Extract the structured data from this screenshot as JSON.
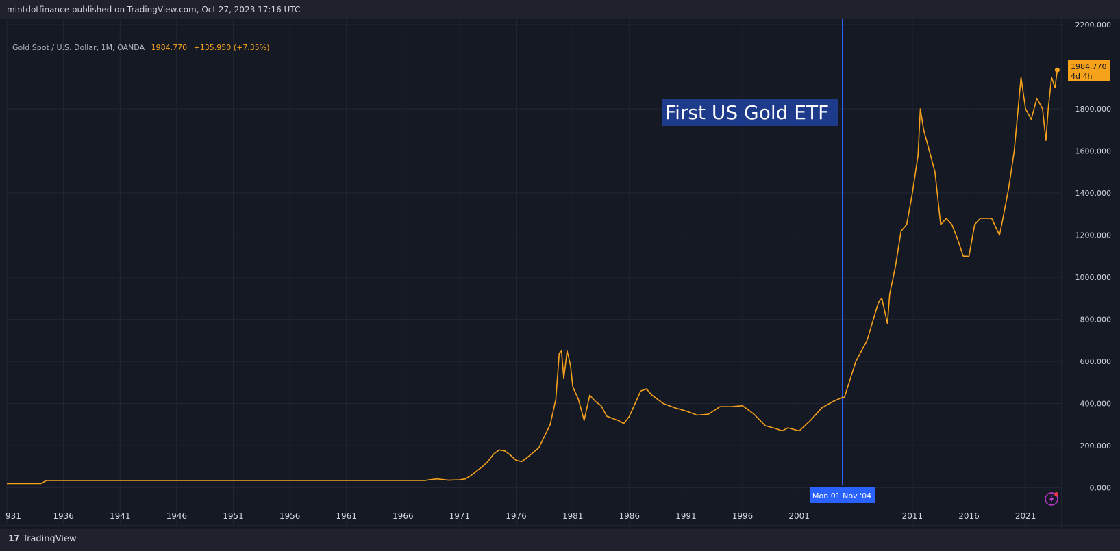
{
  "header": {
    "published": "mintdotfinance published on TradingView.com, Oct 27, 2023 17:16 UTC"
  },
  "legend": {
    "symbol": "Gold Spot / U.S. Dollar, 1M, OANDA",
    "last": "1984.770",
    "change": "+135.950 (+7.35%)"
  },
  "price_tag": {
    "value": "1984.770",
    "countdown": "4d 4h"
  },
  "annotation": {
    "label": "First US Gold ETF",
    "date_label": "Mon 01 Nov '04"
  },
  "footer": {
    "brand": "TradingView",
    "logo_mark": "17"
  },
  "colors": {
    "series": "#f7a21b",
    "background": "#151924",
    "vline": "#2962ff",
    "label_bg": "#1e3a8a",
    "text": "#d1d4dc"
  },
  "chart_data": {
    "type": "line",
    "y_ticks": [
      "2200.000",
      "1800.000",
      "1600.000",
      "1400.000",
      "1200.000",
      "1000.000",
      "800.000",
      "600.000",
      "400.000",
      "200.000",
      "0.000"
    ],
    "x_ticks": [
      "931",
      "1936",
      "1941",
      "1946",
      "1951",
      "1956",
      "1961",
      "1966",
      "1971",
      "1976",
      "1981",
      "1986",
      "1991",
      "1996",
      "2001",
      "2011",
      "2016",
      "2021"
    ],
    "ylim": [
      -180,
      2200
    ],
    "xlim": [
      1931,
      2024.2
    ],
    "vline_x": 2004.833,
    "series": [
      {
        "x": [
          1931,
          1933,
          1934,
          1934.5,
          1950,
          1968,
          1968.3,
          1969,
          1970,
          1971,
          1971.5,
          1972,
          1973,
          1973.5,
          1974,
          1974.5,
          1975,
          1975.5,
          1976,
          1976.5,
          1977,
          1978,
          1979,
          1979.5,
          1979.8,
          1980.0,
          1980.2,
          1980.5,
          1980.8,
          1981,
          1981.5,
          1982,
          1982.5,
          1983,
          1983.5,
          1984,
          1985,
          1985.5,
          1986,
          1987,
          1987.5,
          1988,
          1989,
          1990,
          1991,
          1992,
          1993,
          1994,
          1995,
          1996,
          1997,
          1998,
          1999,
          1999.5,
          2000,
          2001,
          2002,
          2003,
          2004,
          2004.833,
          2005,
          2006,
          2006.5,
          2007,
          2008,
          2008.3,
          2008.8,
          2009,
          2009.5,
          2010,
          2010.5,
          2011,
          2011.5,
          2011.7,
          2012,
          2012.5,
          2013,
          2013.5,
          2014,
          2014.5,
          2015,
          2015.5,
          2016,
          2016.5,
          2017,
          2018,
          2018.7,
          2019,
          2019.5,
          2020,
          2020.6,
          2021,
          2021.5,
          2022,
          2022.5,
          2022.8,
          2023,
          2023.3,
          2023.6,
          2023.8
        ],
        "y": [
          20,
          20,
          20,
          35,
          35,
          35,
          38,
          42,
          36,
          38,
          42,
          58,
          100,
          125,
          160,
          180,
          175,
          155,
          130,
          125,
          145,
          190,
          300,
          420,
          640,
          650,
          520,
          650,
          580,
          480,
          420,
          320,
          440,
          410,
          390,
          340,
          320,
          305,
          340,
          460,
          470,
          440,
          400,
          380,
          365,
          345,
          350,
          385,
          385,
          390,
          350,
          295,
          280,
          270,
          285,
          270,
          320,
          380,
          410,
          430,
          430,
          600,
          650,
          700,
          880,
          900,
          780,
          920,
          1050,
          1220,
          1250,
          1400,
          1580,
          1800,
          1700,
          1600,
          1500,
          1250,
          1280,
          1250,
          1180,
          1100,
          1100,
          1250,
          1280,
          1280,
          1200,
          1280,
          1420,
          1600,
          1950,
          1800,
          1750,
          1850,
          1800,
          1650,
          1800,
          1950,
          1900,
          1984.77
        ]
      }
    ]
  }
}
